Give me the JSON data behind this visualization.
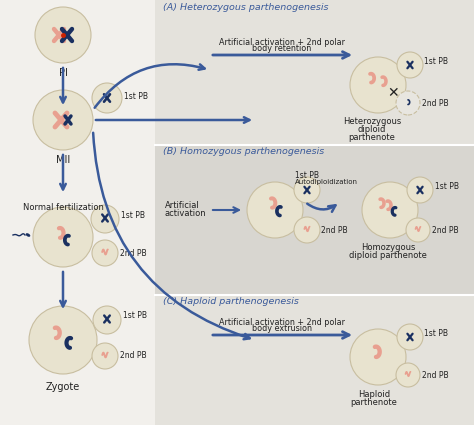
{
  "bg_left": "#f0eeea",
  "bg_right_top": "#e8e6e0",
  "bg_right_mid": "#dddbd5",
  "bg_right_bot": "#e8e6e0",
  "circle_fill": "#e8e3cf",
  "circle_edge": "#c8bea0",
  "chr_pink": "#e8a090",
  "chr_blue": "#1a3060",
  "arrow_color": "#3a5a9a",
  "title_color": "#3a5a9a",
  "text_color": "#222222",
  "sections": {
    "A_title": "(A) Heterozygous parthenogenesis",
    "A_label1": "Artificial activation + 2nd polar",
    "A_label2": "body retention",
    "A_result1": "Heterozygous",
    "A_result2": "diploid",
    "A_result3": "parthenote",
    "B_title": "(B) Homozygous parthenogenesis",
    "B_label1": "Artificial",
    "B_label2": "activation",
    "B_mid1": "1st PB",
    "B_mid2": "Autodiploidization",
    "B_result1": "Homozygous",
    "B_result2": "diploid parthenote",
    "C_title": "(C) Haploid parthenogenesis",
    "C_label1": "Artificial activation + 2nd polar",
    "C_label2": "body extrusion",
    "C_result1": "Haploid",
    "C_result2": "parthenote"
  }
}
